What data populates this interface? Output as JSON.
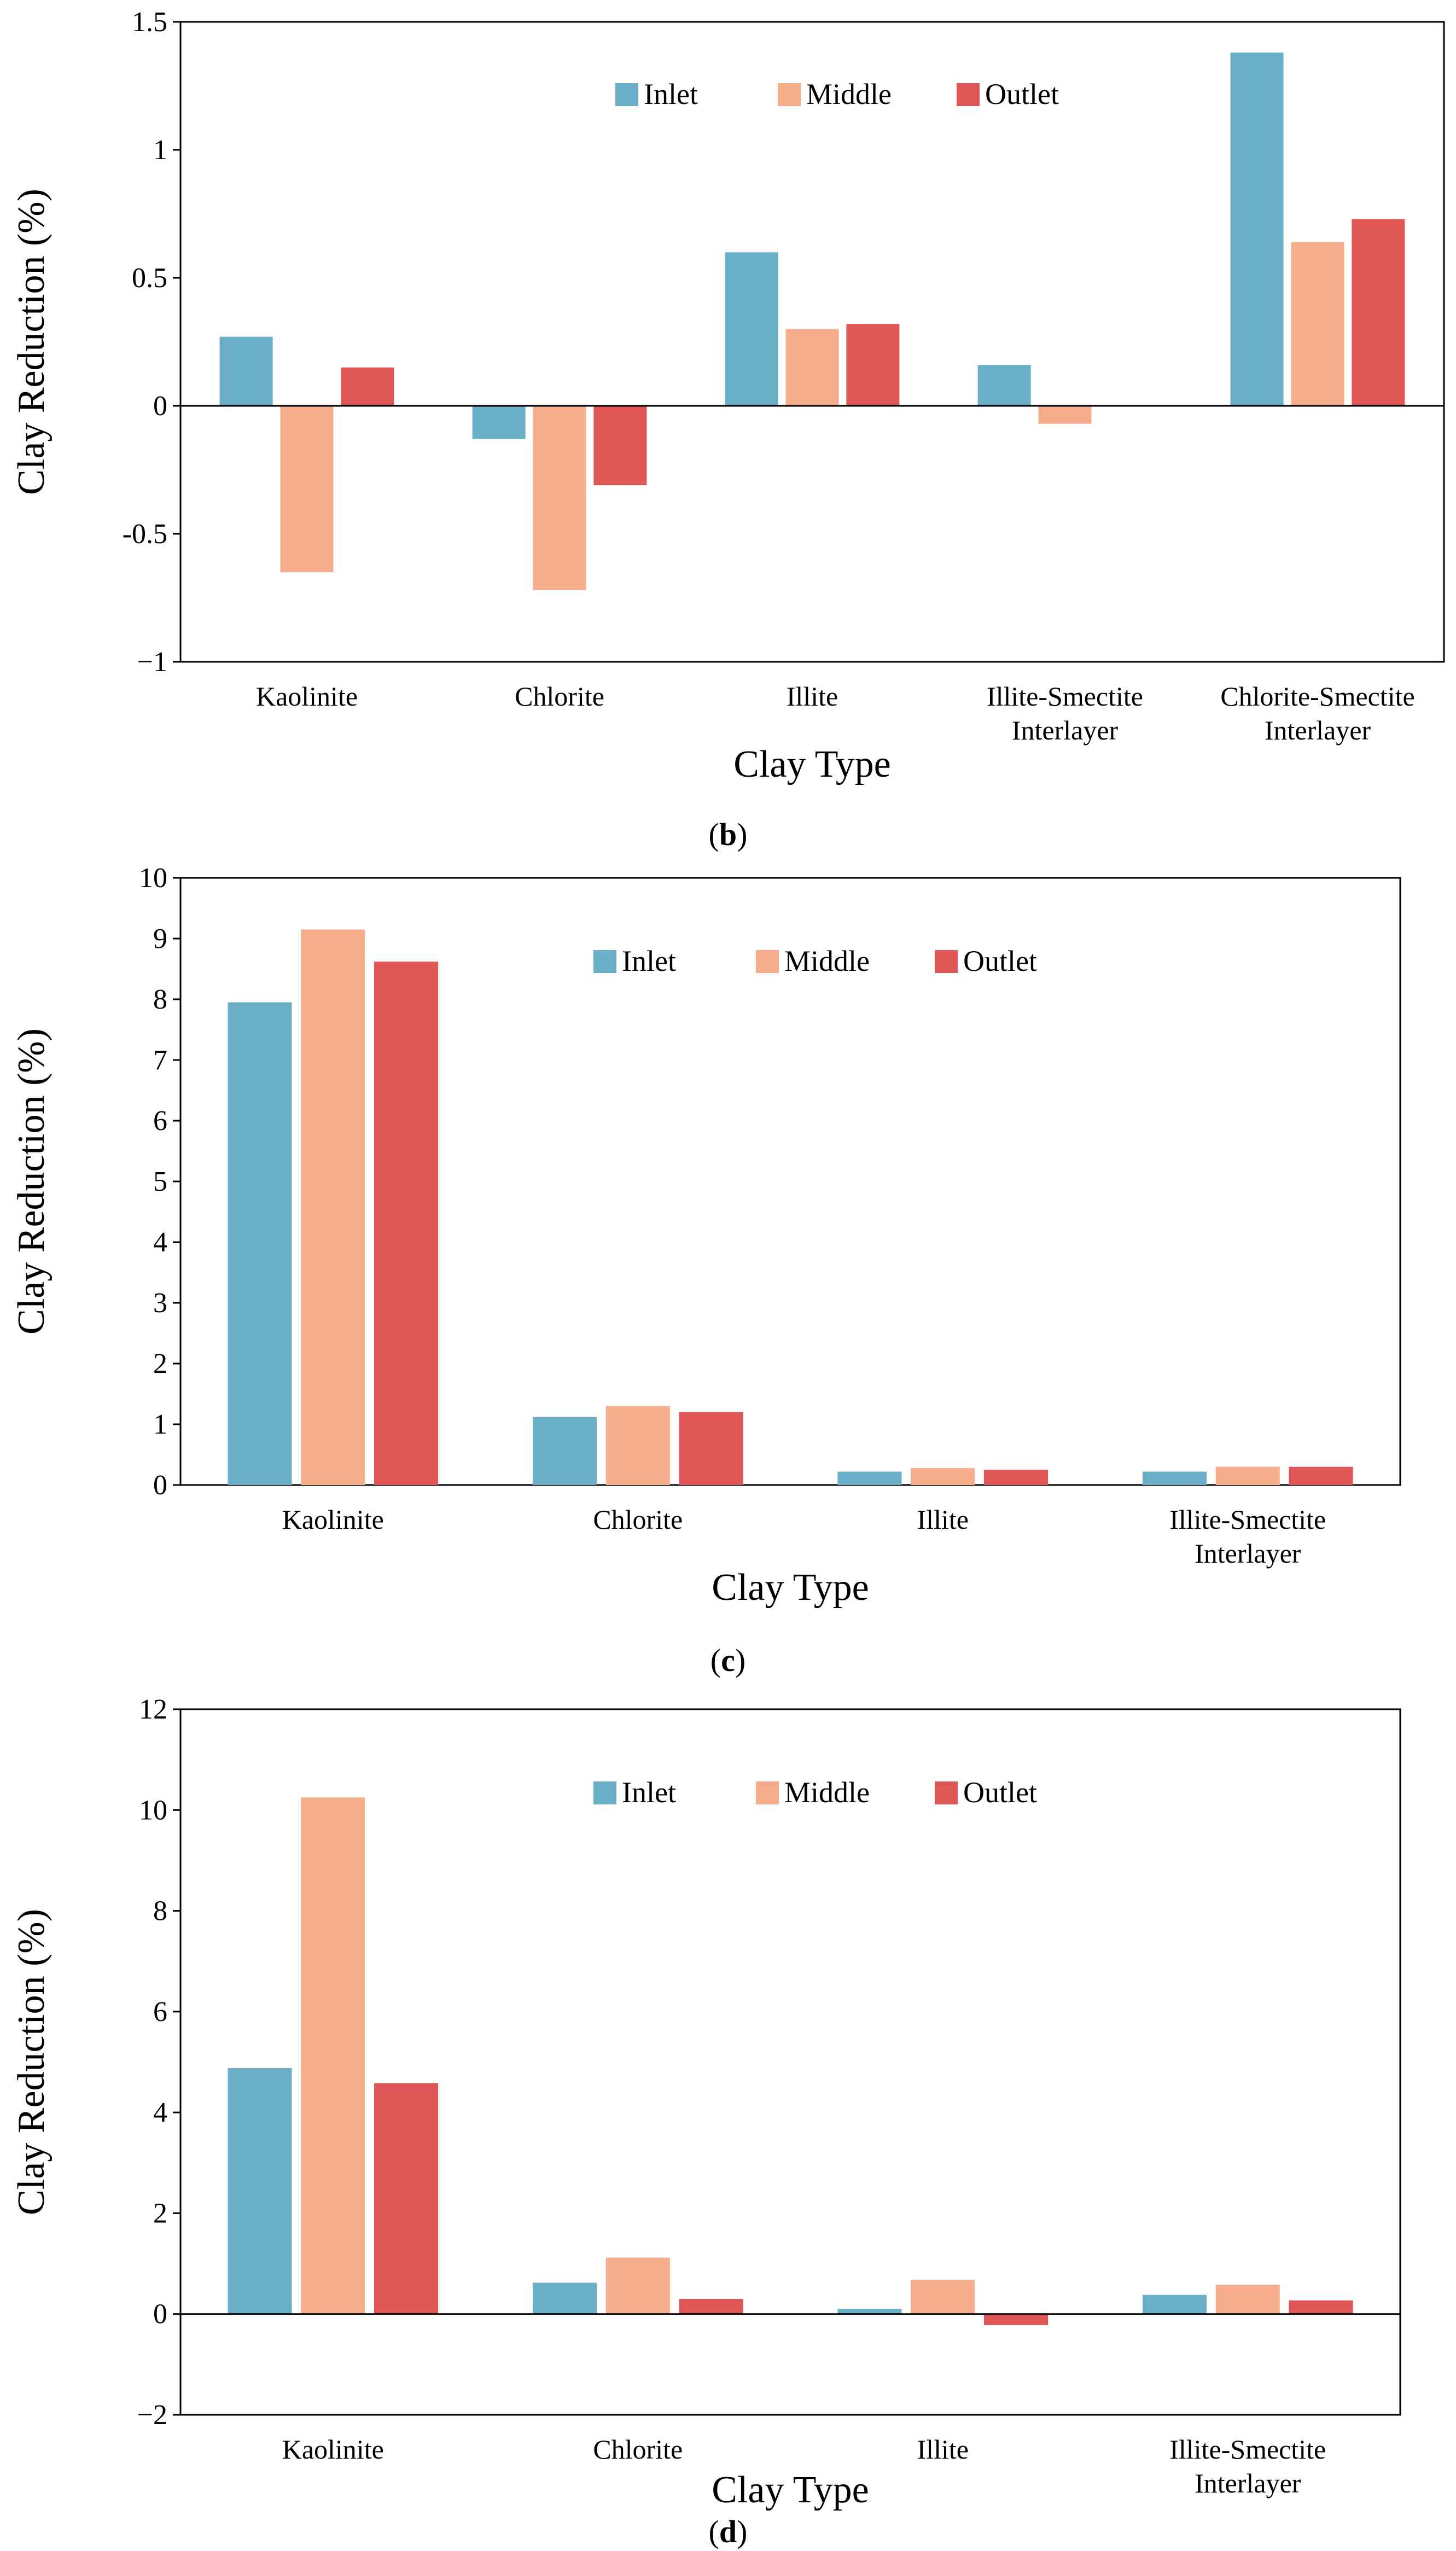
{
  "colors": {
    "Inlet": "#6aaec8",
    "Middle": "#f6ad8c",
    "Outlet": "#e05656"
  },
  "chart_data": [
    {
      "id": "b",
      "type": "bar",
      "caption_letter": "b",
      "caption_open": "(",
      "caption_close": ")",
      "xlabel": "Clay Type",
      "ylabel": "Clay Reduction (%)",
      "ylim": [
        -1,
        1.5
      ],
      "yticks": [
        -1,
        -0.5,
        0,
        0.5,
        1,
        1.5
      ],
      "ytick_labels": [
        "−1",
        "-0.5",
        "0",
        "0.5",
        "1",
        "1.5"
      ],
      "categories": [
        [
          "Kaolinite"
        ],
        [
          "Chlorite"
        ],
        [
          "Illite"
        ],
        [
          "Illite-Smectite",
          "Interlayer"
        ],
        [
          "Chlorite-Smectite",
          "Interlayer"
        ]
      ],
      "legend": [
        "Inlet",
        "Middle",
        "Outlet"
      ],
      "series": [
        {
          "name": "Inlet",
          "values": [
            0.27,
            -0.13,
            0.6,
            0.16,
            1.38
          ]
        },
        {
          "name": "Middle",
          "values": [
            -0.65,
            -0.72,
            0.3,
            -0.07,
            0.64
          ]
        },
        {
          "name": "Outlet",
          "values": [
            0.15,
            -0.31,
            0.32,
            0,
            0.73
          ]
        }
      ]
    },
    {
      "id": "c",
      "type": "bar",
      "caption_letter": "c",
      "caption_open": "(",
      "caption_close": ")",
      "xlabel": "Clay Type",
      "ylabel": "Clay Reduction (%)",
      "ylim": [
        0,
        10
      ],
      "yticks": [
        0,
        1,
        2,
        3,
        4,
        5,
        6,
        7,
        8,
        9,
        10
      ],
      "ytick_labels": [
        "0",
        "1",
        "2",
        "3",
        "4",
        "5",
        "6",
        "7",
        "8",
        "9",
        "10"
      ],
      "categories": [
        [
          "Kaolinite"
        ],
        [
          "Chlorite"
        ],
        [
          "Illite"
        ],
        [
          "Illite-Smectite",
          "Interlayer"
        ]
      ],
      "legend": [
        "Inlet",
        "Middle",
        "Outlet"
      ],
      "series": [
        {
          "name": "Inlet",
          "values": [
            7.95,
            1.12,
            0.22,
            0.22
          ]
        },
        {
          "name": "Middle",
          "values": [
            9.15,
            1.3,
            0.28,
            0.3
          ]
        },
        {
          "name": "Outlet",
          "values": [
            8.62,
            1.2,
            0.25,
            0.3
          ]
        }
      ]
    },
    {
      "id": "d",
      "type": "bar",
      "caption_letter": "d",
      "caption_open": "(",
      "caption_close": ")",
      "xlabel": "Clay Type",
      "ylabel": "Clay Reduction (%)",
      "ylim": [
        -2,
        12
      ],
      "yticks": [
        -2,
        0,
        2,
        4,
        6,
        8,
        10,
        12
      ],
      "ytick_labels": [
        "−2",
        "0",
        "2",
        "4",
        "6",
        "8",
        "10",
        "12"
      ],
      "categories": [
        [
          "Kaolinite"
        ],
        [
          "Chlorite"
        ],
        [
          "Illite"
        ],
        [
          "Illite-Smectite",
          "Interlayer"
        ]
      ],
      "legend": [
        "Inlet",
        "Middle",
        "Outlet"
      ],
      "series": [
        {
          "name": "Inlet",
          "values": [
            4.88,
            0.62,
            0.1,
            0.38
          ]
        },
        {
          "name": "Middle",
          "values": [
            10.25,
            1.12,
            0.68,
            0.58
          ]
        },
        {
          "name": "Outlet",
          "values": [
            4.58,
            0.3,
            -0.22,
            0.27
          ]
        }
      ]
    }
  ]
}
